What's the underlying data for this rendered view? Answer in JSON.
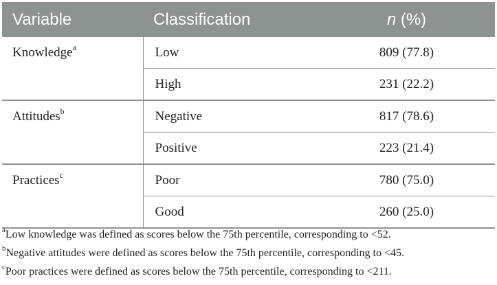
{
  "table": {
    "headers": {
      "variable": "Variable",
      "classification": "Classification",
      "n": "n",
      "pct": " (%)"
    },
    "groups": [
      {
        "variable": "Knowledge",
        "sup": "a",
        "rows": [
          {
            "classification": "Low",
            "value": "809 (77.8)"
          },
          {
            "classification": "High",
            "value": "231 (22.2)"
          }
        ]
      },
      {
        "variable": "Attitudes",
        "sup": "b",
        "rows": [
          {
            "classification": "Negative",
            "value": "817 (78.6)"
          },
          {
            "classification": "Positive",
            "value": "223 (21.4)"
          }
        ]
      },
      {
        "variable": "Practices",
        "sup": "c",
        "rows": [
          {
            "classification": "Poor",
            "value": "780 (75.0)"
          },
          {
            "classification": "Good",
            "value": "260 (25.0)"
          }
        ]
      }
    ]
  },
  "footnotes": [
    {
      "mark": "a",
      "text": "Low knowledge was defined as scores below the 75th percentile, corresponding to <52."
    },
    {
      "mark": "b",
      "text": "Negative attitudes were defined as scores below the 75th percentile, corresponding to <45."
    },
    {
      "mark": "c",
      "text": "Poor practices were defined as scores below the 75th percentile, corresponding to <211."
    }
  ]
}
